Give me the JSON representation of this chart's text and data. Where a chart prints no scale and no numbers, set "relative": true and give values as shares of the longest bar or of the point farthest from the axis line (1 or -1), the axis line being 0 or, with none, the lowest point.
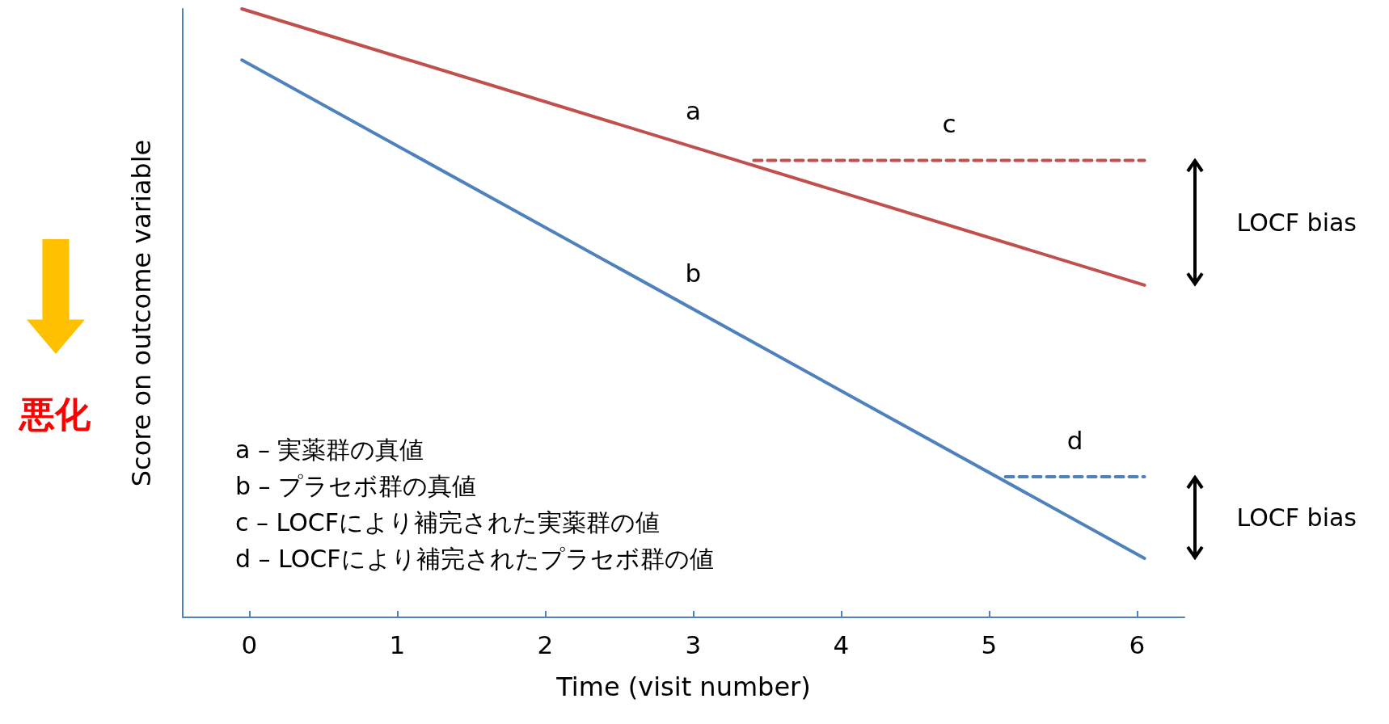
{
  "chart_data": {
    "type": "line",
    "relative": true,
    "xlabel": "Time (visit number)",
    "ylabel": "Score on outcome variable",
    "xlim": [
      -0.45,
      6.32
    ],
    "xticks": [
      0,
      1,
      2,
      3,
      4,
      5,
      6
    ],
    "marker": "none",
    "grid": false,
    "legend": false,
    "series": [
      {
        "name": "a",
        "color": "#c0504d",
        "x": [
          -0.05,
          6.05
        ],
        "values": [
          1,
          0.546
        ],
        "line_style": "solid"
      },
      {
        "name": "b",
        "color": "#4f81bd",
        "x": [
          -0.05,
          6.05
        ],
        "values": [
          0.916,
          0.097
        ],
        "line_style": "solid"
      },
      {
        "name": "c",
        "color": "#c0504d",
        "x": [
          3.41,
          6.05
        ],
        "values": [
          0.751,
          0.751
        ],
        "line_style": "dashed"
      },
      {
        "name": "d",
        "color": "#4f81bd",
        "x": [
          5.11,
          6.05
        ],
        "values": [
          0.231,
          0.231
        ],
        "line_style": "dashed"
      }
    ],
    "annotations": [
      "a – 実薬群の真値",
      "b – プラセボ群の真値",
      "c – LOCFにより補完された実薬群の値",
      "d – LOCFにより補完されたプラセボ群の値",
      "LOCF bias",
      "LOCF bias",
      "悪化"
    ]
  }
}
